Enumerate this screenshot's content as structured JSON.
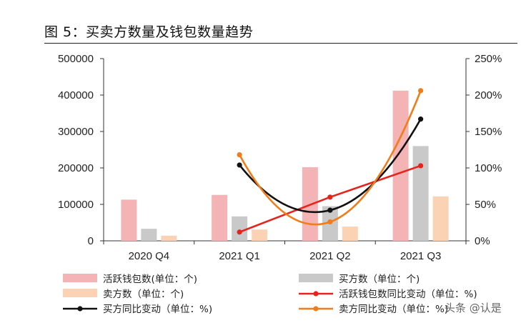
{
  "figure": {
    "title": "图 5：买卖方数量及钱包数量趋势",
    "watermark": "头条 @认是"
  },
  "chart_data": {
    "type": "bar+line",
    "title": "买卖方数量及钱包数量趋势",
    "categories": [
      "2020 Q4",
      "2021 Q1",
      "2021 Q2",
      "2021 Q3"
    ],
    "left_axis": {
      "min": 0,
      "max": 500000,
      "ticks": [
        "0",
        "100000",
        "200000",
        "300000",
        "400000",
        "500000"
      ]
    },
    "right_axis": {
      "min": 0,
      "max": 250,
      "ticks": [
        "0%",
        "50%",
        "100%",
        "150%",
        "200%",
        "250%"
      ]
    },
    "bar_series": [
      {
        "name": "活跃钱包数(单位：个)",
        "color": "#f4b3b5",
        "values": [
          113000,
          126000,
          202000,
          412000
        ]
      },
      {
        "name": "买方数（单位：个)",
        "color": "#c9c9c9",
        "values": [
          33000,
          67000,
          95000,
          260000
        ]
      },
      {
        "name": "卖方数（单位：个)",
        "color": "#fbd2b3",
        "values": [
          14000,
          31000,
          39000,
          122000
        ]
      }
    ],
    "line_series": [
      {
        "name": "活跃钱包数同比变动（单位：%)",
        "color": "#e8231c",
        "smooth": false,
        "values": [
          null,
          12,
          60,
          103
        ]
      },
      {
        "name": "买方同比变动（单位：%)",
        "color": "#111111",
        "smooth": true,
        "values": [
          null,
          104,
          42,
          167
        ]
      },
      {
        "name": "卖方同比变动（单位：%)",
        "color": "#f07d1a",
        "smooth": true,
        "values": [
          null,
          118,
          26,
          206
        ]
      }
    ],
    "legend_position": "bottom"
  }
}
